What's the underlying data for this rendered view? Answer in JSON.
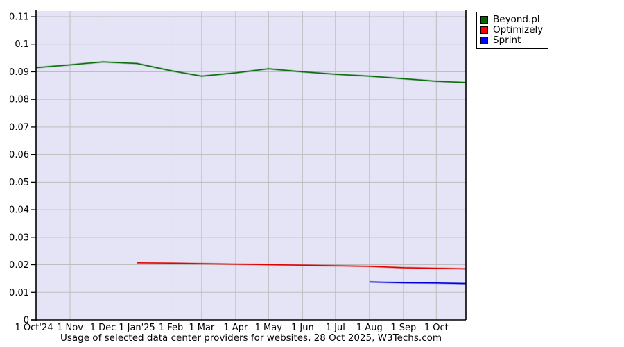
{
  "legend": {
    "items": [
      {
        "label": "Beyond.pl",
        "color": "#006400"
      },
      {
        "label": "Optimizely",
        "color": "#ff0000"
      },
      {
        "label": "Sprint",
        "color": "#0000ff"
      }
    ]
  },
  "chart_data": {
    "type": "line",
    "title": "Usage of selected data center providers for websites, 28 Oct 2025, W3Techs.com",
    "xlabel": "",
    "ylabel": "",
    "x_axis": {
      "unit": "date (days since 1 Oct 2024)",
      "range_days": [
        0,
        392
      ],
      "ticks": [
        {
          "label": "1 Oct'24",
          "day": 0
        },
        {
          "label": "1 Nov",
          "day": 31
        },
        {
          "label": "1 Dec",
          "day": 61
        },
        {
          "label": "1 Jan'25",
          "day": 92
        },
        {
          "label": "1 Feb",
          "day": 123
        },
        {
          "label": "1 Mar",
          "day": 151
        },
        {
          "label": "1 Apr",
          "day": 182
        },
        {
          "label": "1 May",
          "day": 212
        },
        {
          "label": "1 Jun",
          "day": 243
        },
        {
          "label": "1 Jul",
          "day": 273
        },
        {
          "label": "1 Aug",
          "day": 304
        },
        {
          "label": "1 Sep",
          "day": 335
        },
        {
          "label": "1 Oct",
          "day": 365
        }
      ]
    },
    "y_axis": {
      "range": [
        0,
        0.11
      ],
      "ticks": [
        {
          "label": "0",
          "value": 0
        },
        {
          "label": "0.01",
          "value": 0.01
        },
        {
          "label": "0.02",
          "value": 0.02
        },
        {
          "label": "0.03",
          "value": 0.03
        },
        {
          "label": "0.04",
          "value": 0.04
        },
        {
          "label": "0.05",
          "value": 0.05
        },
        {
          "label": "0.06",
          "value": 0.06
        },
        {
          "label": "0.07",
          "value": 0.07
        },
        {
          "label": "0.08",
          "value": 0.08
        },
        {
          "label": "0.09",
          "value": 0.09
        },
        {
          "label": "0.1",
          "value": 0.1
        },
        {
          "label": "0.11",
          "value": 0.11
        }
      ]
    },
    "grid": true,
    "colors": {
      "plot_background": "#e4e4f6",
      "gridline": "#bdbdbd",
      "axis": "#000000"
    },
    "series": [
      {
        "name": "Beyond.pl",
        "color": "#0b6e0b",
        "points": [
          [
            0,
            0.0915
          ],
          [
            31,
            0.0925
          ],
          [
            61,
            0.0936
          ],
          [
            92,
            0.093
          ],
          [
            123,
            0.0904
          ],
          [
            151,
            0.0884
          ],
          [
            182,
            0.0896
          ],
          [
            212,
            0.0911
          ],
          [
            243,
            0.09
          ],
          [
            273,
            0.0891
          ],
          [
            304,
            0.0884
          ],
          [
            335,
            0.0875
          ],
          [
            365,
            0.0866
          ],
          [
            392,
            0.0861
          ]
        ]
      },
      {
        "name": "Optimizely",
        "color": "#e60000",
        "points": [
          [
            92,
            0.0207
          ],
          [
            123,
            0.0206
          ],
          [
            151,
            0.0204
          ],
          [
            182,
            0.0202
          ],
          [
            212,
            0.02
          ],
          [
            243,
            0.0198
          ],
          [
            273,
            0.0196
          ],
          [
            304,
            0.0194
          ],
          [
            335,
            0.0189
          ],
          [
            365,
            0.0187
          ],
          [
            392,
            0.0185
          ]
        ]
      },
      {
        "name": "Sprint",
        "color": "#0000dd",
        "points": [
          [
            304,
            0.0138
          ],
          [
            335,
            0.0135
          ],
          [
            365,
            0.0134
          ],
          [
            392,
            0.0132
          ]
        ]
      }
    ]
  }
}
